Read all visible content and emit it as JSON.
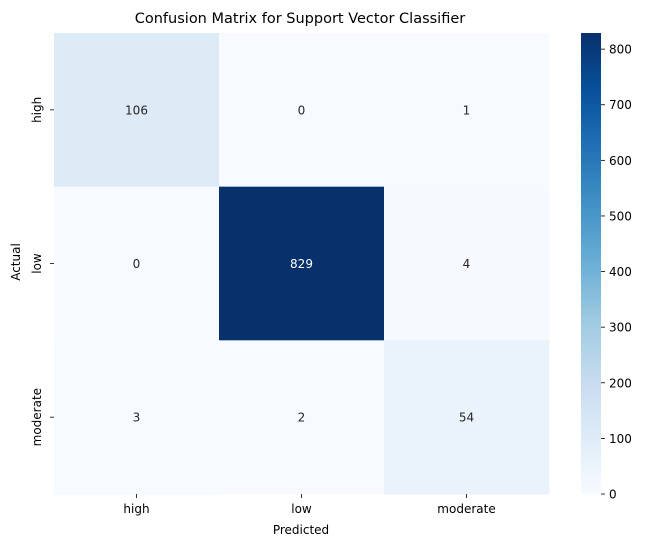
{
  "chart_data": {
    "type": "heatmap",
    "title": "Confusion Matrix for Support Vector Classifier",
    "xlabel": "Predicted",
    "ylabel": "Actual",
    "x_categories": [
      "high",
      "low",
      "moderate"
    ],
    "y_categories": [
      "high",
      "low",
      "moderate"
    ],
    "values": [
      [
        106,
        0,
        1
      ],
      [
        0,
        829,
        4
      ],
      [
        3,
        2,
        54
      ]
    ],
    "colormap": "Blues",
    "color_range": [
      0,
      829
    ],
    "colorbar_ticks": [
      "0",
      "100",
      "200",
      "300",
      "400",
      "500",
      "600",
      "700",
      "800"
    ],
    "annotations": true
  }
}
